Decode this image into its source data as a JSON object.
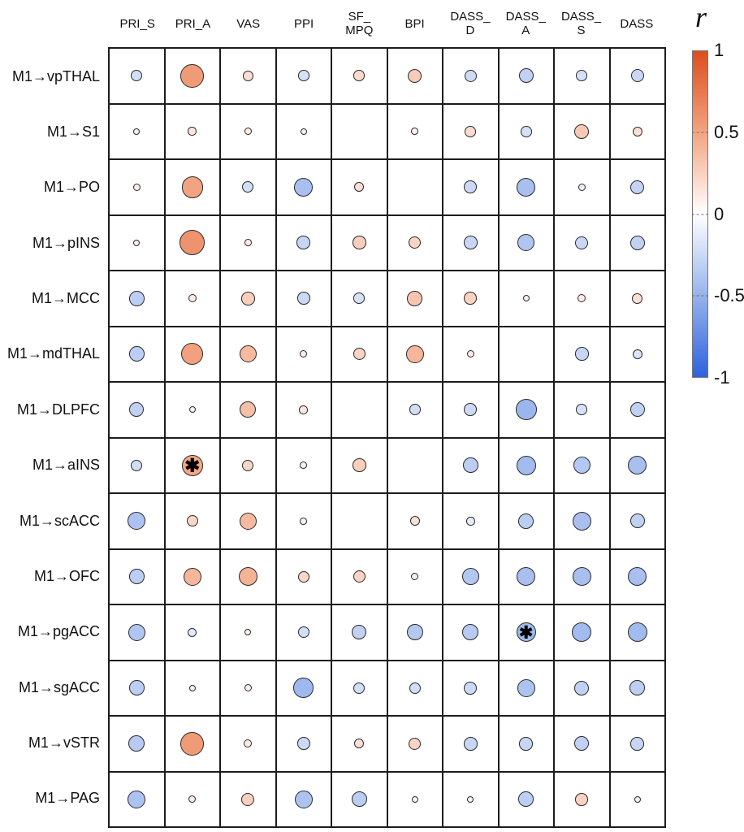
{
  "chart_data": {
    "type": "heatmap",
    "subtype": "correlation-bubble-matrix",
    "title": "",
    "size_encoding": "circle radius proportional to |r|",
    "color_encoding": "blue-white-red diverging colormap of r",
    "significance_marker": "✱",
    "columns": [
      "PRI_S",
      "PRI_A",
      "VAS",
      "PPI",
      "SF_MPQ",
      "BPI",
      "DASS_D",
      "DASS_A",
      "DASS_S",
      "DASS"
    ],
    "column_display": [
      "PRI_S",
      "PRI_A",
      "VAS",
      "PPI",
      "SF_\nMPQ",
      "BPI",
      "DASS_\nD",
      "DASS_\nA",
      "DASS_\nS",
      "DASS"
    ],
    "rows": [
      "M1→vpTHAL",
      "M1→S1",
      "M1→PO",
      "M1→pINS",
      "M1→MCC",
      "M1→mdTHAL",
      "M1→DLPFC",
      "M1→aINS",
      "M1→scACC",
      "M1→OFC",
      "M1→pgACC",
      "M1→sgACC",
      "M1→vSTR",
      "M1→PAG"
    ],
    "values": [
      [
        -0.22,
        0.55,
        0.18,
        -0.2,
        0.2,
        0.28,
        -0.24,
        -0.3,
        -0.2,
        -0.26
      ],
      [
        0.07,
        0.13,
        0.1,
        0.07,
        null,
        0.09,
        0.2,
        -0.2,
        0.3,
        0.17
      ],
      [
        0.1,
        0.5,
        -0.22,
        -0.42,
        0.17,
        null,
        -0.25,
        -0.42,
        -0.1,
        -0.28
      ],
      [
        0.08,
        0.6,
        0.09,
        -0.27,
        0.27,
        0.24,
        -0.27,
        -0.38,
        -0.26,
        -0.3
      ],
      [
        -0.32,
        0.12,
        0.27,
        -0.25,
        -0.2,
        0.32,
        0.25,
        0.08,
        0.12,
        0.18
      ],
      [
        -0.32,
        0.52,
        0.38,
        0.1,
        0.24,
        0.4,
        0.1,
        null,
        -0.27,
        -0.17
      ],
      [
        -0.3,
        0.07,
        0.35,
        0.13,
        null,
        -0.22,
        -0.25,
        -0.48,
        -0.2,
        -0.3
      ],
      [
        -0.22,
        0.48,
        0.22,
        0.09,
        0.27,
        null,
        -0.32,
        -0.44,
        -0.37,
        -0.42
      ],
      [
        -0.4,
        0.22,
        0.38,
        0.09,
        null,
        0.17,
        -0.13,
        -0.33,
        -0.42,
        -0.3
      ],
      [
        -0.32,
        0.4,
        0.42,
        0.22,
        0.24,
        0.1,
        -0.37,
        -0.42,
        -0.42,
        -0.42
      ],
      [
        -0.38,
        -0.15,
        0.08,
        -0.22,
        -0.3,
        -0.36,
        -0.35,
        -0.45,
        -0.45,
        -0.45
      ],
      [
        -0.32,
        0.07,
        0.1,
        -0.46,
        -0.22,
        -0.22,
        -0.25,
        -0.4,
        -0.3,
        -0.32
      ],
      [
        -0.35,
        0.55,
        0.12,
        -0.25,
        0.17,
        0.24,
        -0.27,
        -0.27,
        -0.3,
        -0.27
      ],
      [
        -0.4,
        0.1,
        0.26,
        -0.4,
        -0.33,
        0.08,
        0.08,
        -0.32,
        0.25,
        0.08
      ]
    ],
    "significant_cells": [
      {
        "row": "M1→aINS",
        "col": "PRI_A",
        "row_index": 7,
        "col_index": 1
      },
      {
        "row": "M1→pgACC",
        "col": "DASS_A",
        "row_index": 10,
        "col_index": 7
      }
    ],
    "colorbar": {
      "title": "r",
      "tick_labels": [
        "1",
        "0.5",
        "0",
        "-0.5",
        "-1"
      ],
      "tick_values": [
        1,
        0.5,
        0,
        -0.5,
        -1
      ],
      "range": [
        -1,
        1
      ]
    },
    "colormap_stops": [
      {
        "value": -1.0,
        "color": "#2E62DD"
      },
      {
        "value": -0.5,
        "color": "#97B3EC"
      },
      {
        "value": 0.0,
        "color": "#FFFFFF"
      },
      {
        "value": 0.5,
        "color": "#F2A482"
      },
      {
        "value": 1.0,
        "color": "#DC4E1E"
      }
    ],
    "grid": true,
    "legend_position": "right"
  }
}
